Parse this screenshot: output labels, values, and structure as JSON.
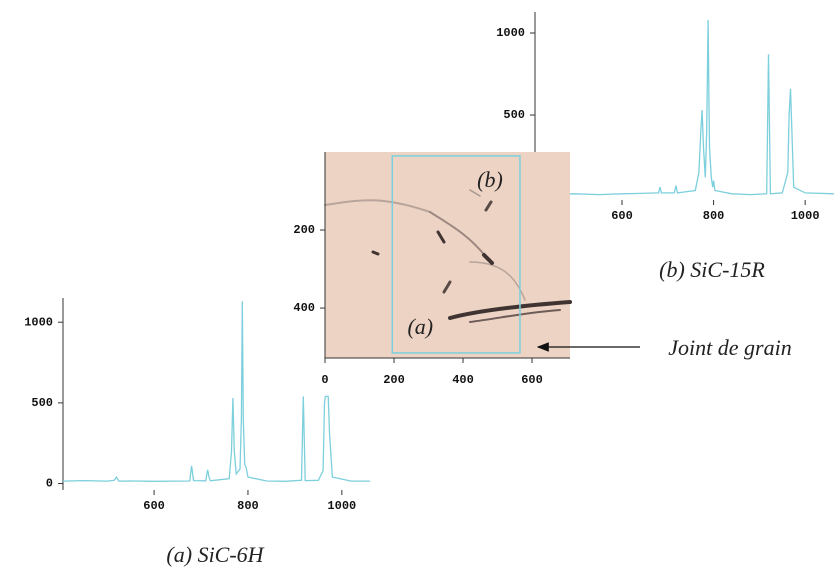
{
  "chart_data": [
    {
      "type": "line",
      "title": "(a) SiC-6H",
      "xlim": [
        406,
        1060
      ],
      "ylim": [
        -40,
        1150
      ],
      "xticks": [
        600,
        800,
        1000
      ],
      "yticks": [
        0,
        500,
        1000
      ],
      "series": [
        {
          "color": "#7ccfdc",
          "x": [
            406,
            450,
            500,
            515,
            520,
            525,
            560,
            600,
            640,
            676,
            680,
            684,
            710,
            714,
            717,
            720,
            760,
            765,
            768,
            771,
            775,
            783,
            786,
            788,
            790,
            793,
            796,
            800,
            840,
            880,
            914,
            918,
            922,
            950,
            960,
            963,
            965,
            968,
            971,
            974,
            980,
            1020,
            1060
          ],
          "values": [
            15,
            18,
            15,
            20,
            40,
            15,
            16,
            14,
            15,
            16,
            110,
            18,
            17,
            85,
            40,
            17,
            30,
            200,
            530,
            200,
            60,
            90,
            400,
            1130,
            400,
            120,
            100,
            40,
            16,
            14,
            20,
            540,
            18,
            20,
            80,
            500,
            540,
            540,
            540,
            300,
            40,
            15,
            15
          ]
        }
      ]
    },
    {
      "type": "line",
      "title": "(b) SiC-15R",
      "xlim": [
        410,
        1063
      ],
      "ylim": [
        -18,
        1128
      ],
      "xticks": [
        600,
        800,
        1000
      ],
      "yticks": [
        500,
        1000
      ],
      "series": [
        {
          "color": "#7ccfdc",
          "x": [
            410,
            450,
            500,
            550,
            600,
            640,
            680,
            683,
            686,
            714,
            718,
            721,
            760,
            768,
            772,
            775,
            778,
            782,
            785,
            788,
            791,
            795,
            798,
            800,
            803,
            840,
            880,
            916,
            920,
            924,
            950,
            962,
            965,
            968,
            971,
            975,
            1000,
            1063
          ],
          "values": [
            20,
            18,
            20,
            15,
            20,
            22,
            25,
            60,
            25,
            25,
            70,
            25,
            40,
            150,
            400,
            530,
            300,
            120,
            400,
            1080,
            300,
            120,
            60,
            100,
            40,
            20,
            15,
            20,
            870,
            20,
            25,
            150,
            500,
            660,
            400,
            60,
            25,
            20
          ]
        }
      ]
    },
    {
      "type": "image",
      "xlim": [
        0,
        710
      ],
      "ylim": [
        0,
        528
      ],
      "xticks": [
        0,
        200,
        400,
        600
      ],
      "yticks": [
        200,
        400
      ],
      "box": {
        "x": [
          195,
          565
        ],
        "y": [
          10,
          515
        ]
      },
      "labels": [
        "(a)",
        "(b)"
      ],
      "annotation": "Joint de grain"
    }
  ]
}
